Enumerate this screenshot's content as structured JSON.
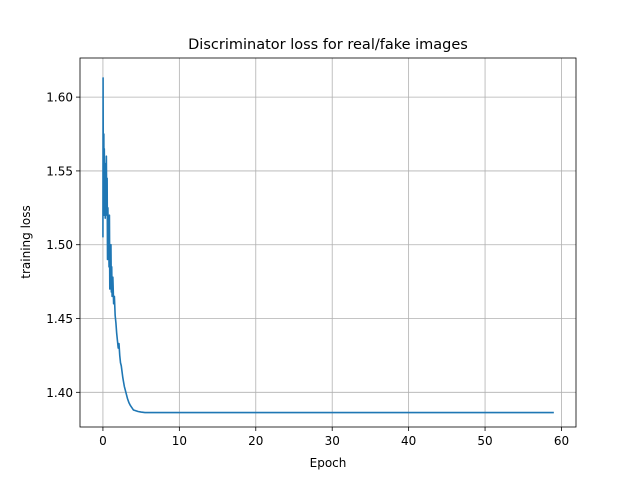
{
  "chart_data": {
    "type": "line",
    "title": "Discriminator loss for real/fake images",
    "xlabel": "Epoch",
    "ylabel": "training loss",
    "xlim": [
      -3,
      61.9
    ],
    "ylim": [
      1.3765,
      1.6265
    ],
    "xticks": [
      0,
      10,
      20,
      30,
      40,
      50,
      60
    ],
    "yticks": [
      1.4,
      1.45,
      1.5,
      1.55,
      1.6
    ],
    "grid": true,
    "series": [
      {
        "color": "#1f77b4",
        "x": [
          0,
          0.02,
          0.05,
          0.08,
          0.12,
          0.15,
          0.18,
          0.22,
          0.26,
          0.3,
          0.35,
          0.4,
          0.45,
          0.5,
          0.55,
          0.6,
          0.65,
          0.7,
          0.75,
          0.8,
          0.85,
          0.9,
          0.95,
          1.0,
          1.05,
          1.1,
          1.15,
          1.2,
          1.3,
          1.4,
          1.5,
          1.6,
          1.7,
          1.8,
          1.9,
          2.0,
          2.1,
          2.2,
          2.3,
          2.4,
          2.5,
          2.6,
          2.7,
          2.8,
          2.9,
          3.0,
          3.2,
          3.4,
          3.6,
          3.8,
          4.0,
          4.3,
          4.6,
          5.0,
          5.5,
          6.0,
          6.5,
          7.0,
          7.5,
          8.0,
          10,
          20,
          30,
          40,
          50,
          59
        ],
        "y": [
          1.505,
          1.613,
          1.55,
          1.545,
          1.575,
          1.52,
          1.565,
          1.528,
          1.548,
          1.518,
          1.555,
          1.53,
          1.56,
          1.52,
          1.545,
          1.49,
          1.525,
          1.5,
          1.51,
          1.485,
          1.52,
          1.47,
          1.49,
          1.48,
          1.5,
          1.468,
          1.485,
          1.465,
          1.478,
          1.46,
          1.465,
          1.452,
          1.447,
          1.44,
          1.435,
          1.43,
          1.433,
          1.425,
          1.42,
          1.418,
          1.414,
          1.41,
          1.407,
          1.404,
          1.402,
          1.4,
          1.396,
          1.393,
          1.391,
          1.3895,
          1.388,
          1.3875,
          1.387,
          1.3866,
          1.3863,
          1.3863,
          1.3863,
          1.3863,
          1.3863,
          1.3863,
          1.3863,
          1.3863,
          1.3863,
          1.3863,
          1.3863,
          1.3863
        ]
      }
    ]
  }
}
